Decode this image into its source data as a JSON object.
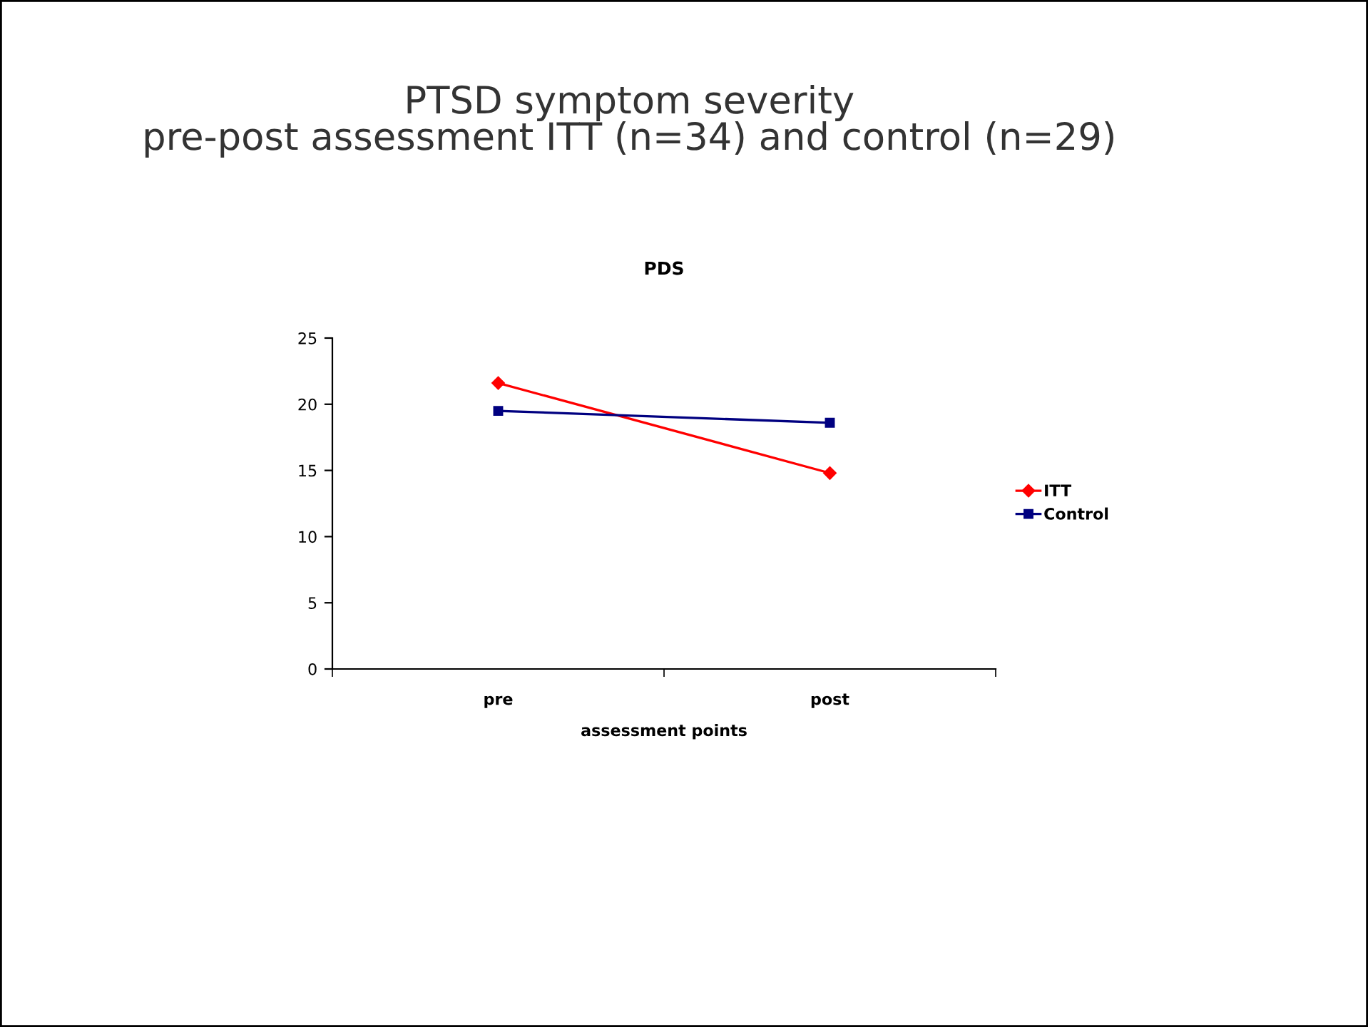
{
  "chart_data": {
    "type": "line",
    "title": "PTSD symptom severity\npre-post assessment ITT (n=34) and control (n=29)",
    "subtitle": "PDS",
    "xlabel": "assessment points",
    "categories": [
      "pre",
      "post"
    ],
    "series": [
      {
        "name": "ITT",
        "color": "#ff0000",
        "values": [
          21.6,
          14.8
        ],
        "marker": "diamond"
      },
      {
        "name": "Control",
        "color": "#000080",
        "values": [
          19.5,
          18.6
        ],
        "marker": "square"
      }
    ],
    "ylim": [
      0,
      25
    ],
    "yticks": [
      0,
      5,
      10,
      15,
      20,
      25
    ],
    "grid": false,
    "legend": "right",
    "line_style": "solid"
  }
}
